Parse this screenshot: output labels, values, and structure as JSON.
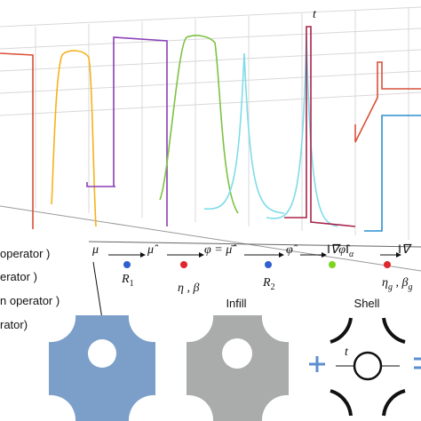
{
  "plot_label": "t",
  "legend": [
    "operator )",
    "erator )",
    "n operator )",
    "rator)"
  ],
  "steps": [
    "μ",
    "μ̂",
    "φ = μ̄̂",
    "φ̂"
  ],
  "norm": {
    "text": "‖∇φ̂‖",
    "sub": "α"
  },
  "last": "‖∇",
  "operators": [
    {
      "text": "R",
      "sub": "1"
    },
    {
      "text": "η , β"
    },
    {
      "text": "R",
      "sub": "2"
    },
    {
      "text": "η",
      "sub": "g",
      "text2": " , β",
      "sub2": "g"
    }
  ],
  "shapes": {
    "infill": "Infill",
    "shell": "Shell",
    "thickness": "t"
  }
}
